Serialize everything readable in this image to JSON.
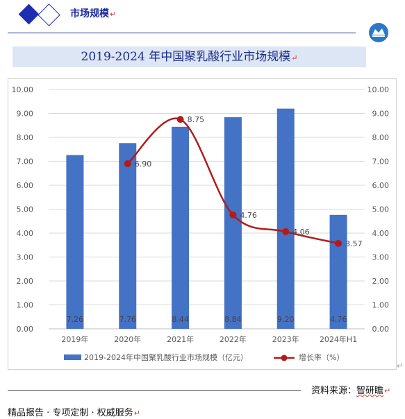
{
  "header": {
    "title": "市场规模"
  },
  "title": "2019-2024 年中国聚乳酸行业市场规模",
  "source_label": "资料来源：",
  "source_org": "智研瞻",
  "footer": {
    "text": "精品报告 · 专项定制 · 权威服务"
  },
  "colors": {
    "bar": "#4472c4",
    "line": "#b01c1c",
    "brand": "#1f2eb0",
    "title_bg": "#dde6f4"
  },
  "chart_data": {
    "type": "bar",
    "categories": [
      "2019年",
      "2020年",
      "2021年",
      "2022年",
      "2023年",
      "2024年H1"
    ],
    "series": [
      {
        "name": "2019-2024年中国聚乳酸行业市场规模（亿元）",
        "type": "bar",
        "axis": "left",
        "values": [
          7.26,
          7.76,
          8.44,
          8.84,
          9.2,
          4.76
        ],
        "labels": [
          "7.26",
          "7.76",
          "8.44",
          "8.84",
          "9.20",
          "4.76"
        ]
      },
      {
        "name": "增长率（%）",
        "type": "line",
        "axis": "right",
        "smooth": true,
        "values": [
          null,
          6.9,
          8.75,
          4.76,
          4.06,
          3.57
        ],
        "labels": [
          "",
          "6.90",
          "8.75",
          "4.76",
          "4.06",
          "3.57"
        ]
      }
    ],
    "y_ticks": [
      "0.00",
      "1.00",
      "2.00",
      "3.00",
      "4.00",
      "5.00",
      "6.00",
      "7.00",
      "8.00",
      "9.00",
      "10.00"
    ],
    "y2_ticks": [
      "0.00",
      "1.00",
      "2.00",
      "3.00",
      "4.00",
      "5.00",
      "6.00",
      "7.00",
      "8.00",
      "9.00",
      "10.00"
    ],
    "ylim": [
      0,
      10
    ],
    "y2lim": [
      0,
      10
    ],
    "grid": true,
    "legend_position": "bottom"
  }
}
